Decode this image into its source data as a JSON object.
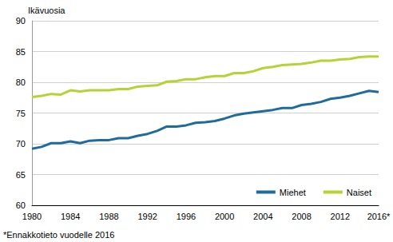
{
  "chart_data": {
    "type": "line",
    "ylabel": "Ikävuosia",
    "annotations": [
      "*Ennakkotieto vuodelle 2016"
    ],
    "categories": [
      "1980",
      null,
      null,
      null,
      "1984",
      null,
      null,
      null,
      "1988",
      null,
      null,
      null,
      "1992",
      null,
      null,
      null,
      "1996",
      null,
      null,
      null,
      "2000",
      null,
      null,
      null,
      "2004",
      null,
      null,
      null,
      "2008",
      null,
      null,
      null,
      "2012",
      null,
      null,
      null,
      "2016*"
    ],
    "series": [
      {
        "name": "Miehet",
        "color": "#1f6b9e",
        "values": [
          69.2,
          69.5,
          70.1,
          70.1,
          70.4,
          70.1,
          70.5,
          70.6,
          70.6,
          70.9,
          70.9,
          71.3,
          71.6,
          72.1,
          72.8,
          72.8,
          73.0,
          73.4,
          73.5,
          73.7,
          74.1,
          74.6,
          74.9,
          75.1,
          75.3,
          75.5,
          75.8,
          75.8,
          76.3,
          76.5,
          76.8,
          77.3,
          77.5,
          77.8,
          78.2,
          78.6,
          78.4
        ]
      },
      {
        "name": "Naiset",
        "color": "#b5d334",
        "values": [
          77.6,
          77.8,
          78.1,
          78.0,
          78.7,
          78.5,
          78.7,
          78.7,
          78.7,
          78.9,
          78.9,
          79.3,
          79.4,
          79.5,
          80.1,
          80.2,
          80.5,
          80.5,
          80.8,
          81.0,
          81.0,
          81.5,
          81.5,
          81.8,
          82.3,
          82.5,
          82.8,
          82.9,
          83.0,
          83.2,
          83.5,
          83.5,
          83.7,
          83.8,
          84.1,
          84.2,
          84.2
        ]
      }
    ],
    "ylim": [
      60,
      90
    ],
    "yticks": [
      60,
      65,
      70,
      75,
      80,
      85,
      90
    ],
    "grid": true,
    "legend": "lower right"
  }
}
